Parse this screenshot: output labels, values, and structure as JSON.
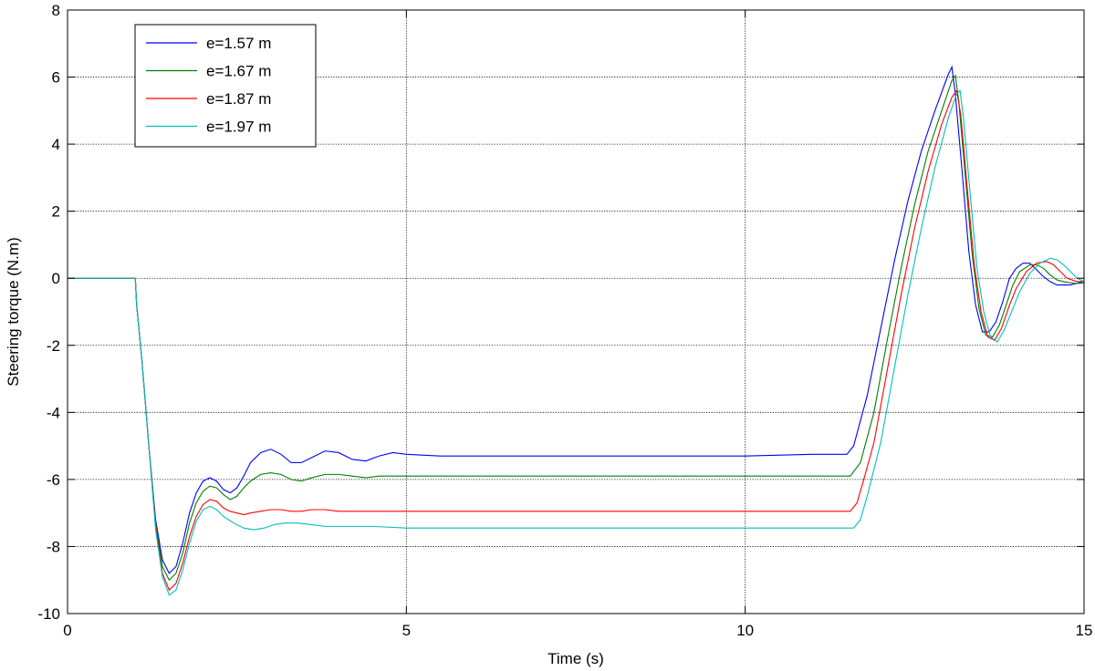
{
  "chart_data": {
    "type": "line",
    "title": "",
    "xlabel": "Time (s)",
    "ylabel": "Steering torque (N.m)",
    "xlim": [
      0,
      15
    ],
    "ylim": [
      -10,
      8
    ],
    "xticks": [
      0,
      5,
      10,
      15
    ],
    "yticks": [
      -10,
      -8,
      -6,
      -4,
      -2,
      0,
      2,
      4,
      6,
      8
    ],
    "xtick_labels": [
      "0",
      "5",
      "10",
      "15"
    ],
    "ytick_labels": [
      "-10",
      "-8",
      "-6",
      "-4",
      "-2",
      "0",
      "2",
      "4",
      "6",
      "8"
    ],
    "grid": true,
    "legend_position": "top-left",
    "series": [
      {
        "name": "e=1.57 m",
        "color": "#0000ff",
        "points": [
          [
            0,
            0
          ],
          [
            1,
            0
          ],
          [
            1.02,
            -0.8
          ],
          [
            1.1,
            -2.5
          ],
          [
            1.2,
            -5.0
          ],
          [
            1.3,
            -7.2
          ],
          [
            1.4,
            -8.4
          ],
          [
            1.5,
            -8.8
          ],
          [
            1.6,
            -8.6
          ],
          [
            1.7,
            -7.9
          ],
          [
            1.8,
            -7.0
          ],
          [
            1.9,
            -6.4
          ],
          [
            2.0,
            -6.05
          ],
          [
            2.1,
            -5.95
          ],
          [
            2.2,
            -6.05
          ],
          [
            2.3,
            -6.3
          ],
          [
            2.4,
            -6.4
          ],
          [
            2.5,
            -6.25
          ],
          [
            2.6,
            -5.9
          ],
          [
            2.7,
            -5.5
          ],
          [
            2.85,
            -5.2
          ],
          [
            3.0,
            -5.1
          ],
          [
            3.15,
            -5.25
          ],
          [
            3.3,
            -5.5
          ],
          [
            3.45,
            -5.5
          ],
          [
            3.6,
            -5.35
          ],
          [
            3.8,
            -5.15
          ],
          [
            4.0,
            -5.2
          ],
          [
            4.2,
            -5.4
          ],
          [
            4.4,
            -5.45
          ],
          [
            4.6,
            -5.3
          ],
          [
            4.8,
            -5.2
          ],
          [
            5.0,
            -5.25
          ],
          [
            5.5,
            -5.3
          ],
          [
            6,
            -5.3
          ],
          [
            7,
            -5.3
          ],
          [
            8,
            -5.3
          ],
          [
            9,
            -5.3
          ],
          [
            10,
            -5.3
          ],
          [
            11,
            -5.25
          ],
          [
            11.5,
            -5.25
          ],
          [
            11.6,
            -5.0
          ],
          [
            11.8,
            -3.5
          ],
          [
            12.0,
            -1.5
          ],
          [
            12.2,
            0.5
          ],
          [
            12.4,
            2.3
          ],
          [
            12.6,
            3.8
          ],
          [
            12.8,
            5.0
          ],
          [
            13.0,
            6.1
          ],
          [
            13.05,
            6.3
          ],
          [
            13.1,
            5.5
          ],
          [
            13.2,
            3.2
          ],
          [
            13.3,
            0.8
          ],
          [
            13.4,
            -0.8
          ],
          [
            13.5,
            -1.6
          ],
          [
            13.6,
            -1.6
          ],
          [
            13.7,
            -1.3
          ],
          [
            13.8,
            -0.7
          ],
          [
            13.9,
            0.0
          ],
          [
            14.0,
            0.3
          ],
          [
            14.1,
            0.45
          ],
          [
            14.2,
            0.45
          ],
          [
            14.3,
            0.25
          ],
          [
            14.4,
            0.05
          ],
          [
            14.5,
            -0.1
          ],
          [
            14.6,
            -0.2
          ],
          [
            14.8,
            -0.2
          ],
          [
            15,
            -0.1
          ]
        ]
      },
      {
        "name": "e=1.67 m",
        "color": "#007f00",
        "points": [
          [
            0,
            0
          ],
          [
            1,
            0
          ],
          [
            1.02,
            -0.8
          ],
          [
            1.1,
            -2.5
          ],
          [
            1.2,
            -5.0
          ],
          [
            1.3,
            -7.3
          ],
          [
            1.4,
            -8.6
          ],
          [
            1.5,
            -9.0
          ],
          [
            1.6,
            -8.8
          ],
          [
            1.7,
            -8.2
          ],
          [
            1.8,
            -7.3
          ],
          [
            1.9,
            -6.7
          ],
          [
            2.0,
            -6.35
          ],
          [
            2.1,
            -6.2
          ],
          [
            2.2,
            -6.25
          ],
          [
            2.3,
            -6.45
          ],
          [
            2.4,
            -6.6
          ],
          [
            2.5,
            -6.5
          ],
          [
            2.6,
            -6.25
          ],
          [
            2.7,
            -6.05
          ],
          [
            2.85,
            -5.85
          ],
          [
            3.0,
            -5.8
          ],
          [
            3.15,
            -5.85
          ],
          [
            3.3,
            -6.0
          ],
          [
            3.45,
            -6.05
          ],
          [
            3.6,
            -5.95
          ],
          [
            3.8,
            -5.85
          ],
          [
            4.0,
            -5.85
          ],
          [
            4.2,
            -5.9
          ],
          [
            4.4,
            -5.95
          ],
          [
            4.6,
            -5.9
          ],
          [
            5.0,
            -5.9
          ],
          [
            6,
            -5.9
          ],
          [
            7,
            -5.9
          ],
          [
            8,
            -5.9
          ],
          [
            9,
            -5.9
          ],
          [
            10,
            -5.9
          ],
          [
            11,
            -5.9
          ],
          [
            11.55,
            -5.9
          ],
          [
            11.7,
            -5.5
          ],
          [
            11.9,
            -4.0
          ],
          [
            12.1,
            -1.8
          ],
          [
            12.3,
            0.3
          ],
          [
            12.5,
            2.2
          ],
          [
            12.7,
            3.8
          ],
          [
            12.9,
            5.0
          ],
          [
            13.05,
            5.9
          ],
          [
            13.1,
            6.05
          ],
          [
            13.15,
            5.3
          ],
          [
            13.25,
            3.0
          ],
          [
            13.35,
            0.7
          ],
          [
            13.45,
            -0.9
          ],
          [
            13.55,
            -1.7
          ],
          [
            13.65,
            -1.75
          ],
          [
            13.75,
            -1.4
          ],
          [
            13.85,
            -0.8
          ],
          [
            13.95,
            -0.2
          ],
          [
            14.05,
            0.2
          ],
          [
            14.2,
            0.4
          ],
          [
            14.3,
            0.4
          ],
          [
            14.4,
            0.3
          ],
          [
            14.5,
            0.1
          ],
          [
            14.6,
            -0.05
          ],
          [
            14.7,
            -0.1
          ],
          [
            14.85,
            -0.15
          ],
          [
            15,
            -0.15
          ]
        ]
      },
      {
        "name": "e=1.87 m",
        "color": "#ff0000",
        "points": [
          [
            0,
            0
          ],
          [
            1,
            0
          ],
          [
            1.02,
            -0.8
          ],
          [
            1.1,
            -2.5
          ],
          [
            1.2,
            -5.0
          ],
          [
            1.3,
            -7.4
          ],
          [
            1.4,
            -8.8
          ],
          [
            1.5,
            -9.3
          ],
          [
            1.6,
            -9.1
          ],
          [
            1.7,
            -8.5
          ],
          [
            1.8,
            -7.7
          ],
          [
            1.9,
            -7.1
          ],
          [
            2.0,
            -6.75
          ],
          [
            2.1,
            -6.6
          ],
          [
            2.2,
            -6.65
          ],
          [
            2.3,
            -6.85
          ],
          [
            2.4,
            -6.95
          ],
          [
            2.5,
            -7.0
          ],
          [
            2.6,
            -7.05
          ],
          [
            2.7,
            -7.0
          ],
          [
            2.85,
            -6.95
          ],
          [
            3.0,
            -6.9
          ],
          [
            3.15,
            -6.9
          ],
          [
            3.3,
            -6.95
          ],
          [
            3.45,
            -6.95
          ],
          [
            3.6,
            -6.9
          ],
          [
            3.8,
            -6.9
          ],
          [
            4.0,
            -6.95
          ],
          [
            4.5,
            -6.95
          ],
          [
            5.0,
            -6.95
          ],
          [
            6,
            -6.95
          ],
          [
            7,
            -6.95
          ],
          [
            8,
            -6.95
          ],
          [
            9,
            -6.95
          ],
          [
            10,
            -6.95
          ],
          [
            11,
            -6.95
          ],
          [
            11.55,
            -6.95
          ],
          [
            11.65,
            -6.7
          ],
          [
            11.75,
            -6.0
          ],
          [
            11.9,
            -4.9
          ],
          [
            12.1,
            -2.7
          ],
          [
            12.3,
            -0.5
          ],
          [
            12.5,
            1.5
          ],
          [
            12.7,
            3.2
          ],
          [
            12.9,
            4.6
          ],
          [
            13.05,
            5.4
          ],
          [
            13.12,
            5.6
          ],
          [
            13.18,
            4.9
          ],
          [
            13.28,
            2.6
          ],
          [
            13.38,
            0.4
          ],
          [
            13.48,
            -1.0
          ],
          [
            13.58,
            -1.75
          ],
          [
            13.68,
            -1.85
          ],
          [
            13.78,
            -1.5
          ],
          [
            13.9,
            -0.8
          ],
          [
            14.0,
            -0.3
          ],
          [
            14.15,
            0.2
          ],
          [
            14.3,
            0.45
          ],
          [
            14.45,
            0.5
          ],
          [
            14.55,
            0.4
          ],
          [
            14.65,
            0.2
          ],
          [
            14.75,
            0.0
          ],
          [
            14.9,
            -0.1
          ],
          [
            15,
            -0.1
          ]
        ]
      },
      {
        "name": "e=1.97 m",
        "color": "#00bfbf",
        "points": [
          [
            0,
            0
          ],
          [
            1,
            0
          ],
          [
            1.02,
            -0.8
          ],
          [
            1.1,
            -2.5
          ],
          [
            1.2,
            -5.0
          ],
          [
            1.3,
            -7.5
          ],
          [
            1.4,
            -8.9
          ],
          [
            1.5,
            -9.45
          ],
          [
            1.6,
            -9.3
          ],
          [
            1.7,
            -8.7
          ],
          [
            1.8,
            -7.9
          ],
          [
            1.9,
            -7.25
          ],
          [
            2.0,
            -6.9
          ],
          [
            2.1,
            -6.8
          ],
          [
            2.2,
            -6.9
          ],
          [
            2.3,
            -7.1
          ],
          [
            2.45,
            -7.3
          ],
          [
            2.6,
            -7.45
          ],
          [
            2.75,
            -7.5
          ],
          [
            2.9,
            -7.45
          ],
          [
            3.05,
            -7.35
          ],
          [
            3.2,
            -7.3
          ],
          [
            3.4,
            -7.3
          ],
          [
            3.6,
            -7.35
          ],
          [
            3.8,
            -7.4
          ],
          [
            4.0,
            -7.4
          ],
          [
            4.5,
            -7.4
          ],
          [
            5.0,
            -7.45
          ],
          [
            6,
            -7.45
          ],
          [
            7,
            -7.45
          ],
          [
            8,
            -7.45
          ],
          [
            9,
            -7.45
          ],
          [
            10,
            -7.45
          ],
          [
            11,
            -7.45
          ],
          [
            11.6,
            -7.45
          ],
          [
            11.7,
            -7.2
          ],
          [
            11.8,
            -6.5
          ],
          [
            12.0,
            -4.9
          ],
          [
            12.2,
            -2.7
          ],
          [
            12.4,
            -0.5
          ],
          [
            12.6,
            1.5
          ],
          [
            12.8,
            3.3
          ],
          [
            13.0,
            4.8
          ],
          [
            13.12,
            5.5
          ],
          [
            13.17,
            5.6
          ],
          [
            13.22,
            4.8
          ],
          [
            13.32,
            2.5
          ],
          [
            13.42,
            0.3
          ],
          [
            13.52,
            -1.0
          ],
          [
            13.62,
            -1.75
          ],
          [
            13.72,
            -1.9
          ],
          [
            13.82,
            -1.55
          ],
          [
            13.95,
            -0.9
          ],
          [
            14.05,
            -0.4
          ],
          [
            14.2,
            0.15
          ],
          [
            14.35,
            0.45
          ],
          [
            14.5,
            0.6
          ],
          [
            14.6,
            0.55
          ],
          [
            14.7,
            0.4
          ],
          [
            14.8,
            0.2
          ],
          [
            14.9,
            0.0
          ],
          [
            15,
            -0.1
          ]
        ]
      }
    ]
  }
}
